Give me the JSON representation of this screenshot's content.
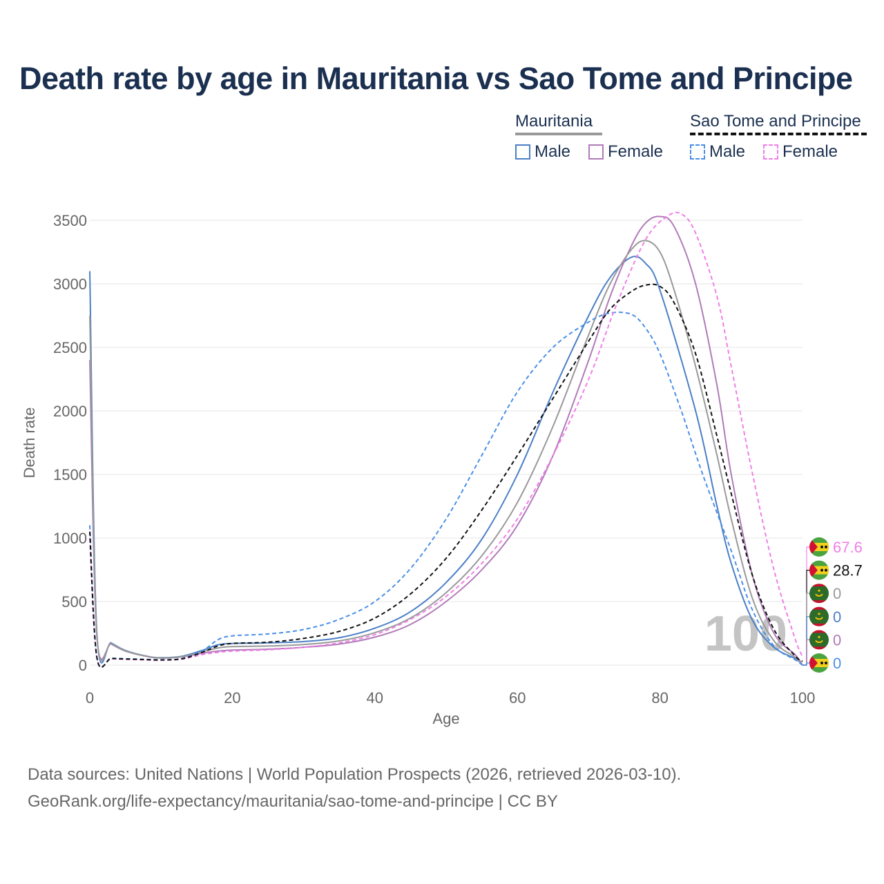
{
  "title": "Death rate by age in Mauritania vs Sao Tome and Principe",
  "legend": {
    "groups": [
      {
        "name": "Mauritania",
        "line_style": "solid",
        "line_color": "#999999",
        "items": [
          {
            "label": "Male",
            "color": "#4a7fc6",
            "style": "solid"
          },
          {
            "label": "Female",
            "color": "#b07ab8",
            "style": "solid"
          }
        ]
      },
      {
        "name": "Sao Tome and Principe",
        "line_style": "dashed",
        "line_color": "#111111",
        "items": [
          {
            "label": "Male",
            "color": "#4a8fe8",
            "style": "dashed"
          },
          {
            "label": "Female",
            "color": "#f07ee8",
            "style": "dashed"
          }
        ]
      }
    ]
  },
  "footer": {
    "line1": "Data sources: United Nations | World Population Prospects (2026, retrieved 2026-03-10).",
    "line2": "GeoRank.org/life-expectancy/mauritania/sao-tome-and-principe | CC BY"
  },
  "chart_data": {
    "type": "line",
    "title": "Death rate by age in Mauritania vs Sao Tome and Principe",
    "xlabel": "Age",
    "ylabel": "Death rate",
    "xlim": [
      0,
      100
    ],
    "ylim": [
      0,
      3500
    ],
    "xticks": [
      0,
      20,
      40,
      60,
      80,
      100
    ],
    "yticks": [
      0,
      500,
      1000,
      1500,
      2000,
      2500,
      3000,
      3500
    ],
    "grid": true,
    "watermark": "100",
    "series": [
      {
        "name": "Mauritania Male",
        "color": "#4a7fc6",
        "dash": "solid",
        "end_label": "0",
        "points": [
          [
            0,
            3100
          ],
          [
            1,
            250
          ],
          [
            3,
            175
          ],
          [
            5,
            115
          ],
          [
            8,
            70
          ],
          [
            10,
            58
          ],
          [
            13,
            70
          ],
          [
            16,
            120
          ],
          [
            18,
            160
          ],
          [
            20,
            170
          ],
          [
            25,
            175
          ],
          [
            30,
            185
          ],
          [
            35,
            215
          ],
          [
            40,
            290
          ],
          [
            45,
            420
          ],
          [
            50,
            650
          ],
          [
            55,
            990
          ],
          [
            60,
            1500
          ],
          [
            65,
            2150
          ],
          [
            70,
            2750
          ],
          [
            73,
            3050
          ],
          [
            76,
            3210
          ],
          [
            78,
            3160
          ],
          [
            80,
            2950
          ],
          [
            85,
            2000
          ],
          [
            88,
            1250
          ],
          [
            90,
            800
          ],
          [
            93,
            350
          ],
          [
            96,
            140
          ],
          [
            99,
            50
          ],
          [
            100,
            0
          ]
        ]
      },
      {
        "name": "Mauritania Female",
        "color": "#b07ab8",
        "dash": "solid",
        "end_label": "0",
        "points": [
          [
            0,
            2400
          ],
          [
            1,
            225
          ],
          [
            3,
            165
          ],
          [
            5,
            110
          ],
          [
            8,
            68
          ],
          [
            10,
            55
          ],
          [
            13,
            65
          ],
          [
            16,
            95
          ],
          [
            18,
            110
          ],
          [
            20,
            118
          ],
          [
            25,
            125
          ],
          [
            30,
            140
          ],
          [
            35,
            165
          ],
          [
            40,
            220
          ],
          [
            45,
            320
          ],
          [
            50,
            500
          ],
          [
            55,
            750
          ],
          [
            60,
            1100
          ],
          [
            65,
            1650
          ],
          [
            70,
            2400
          ],
          [
            73,
            2900
          ],
          [
            76,
            3300
          ],
          [
            78,
            3480
          ],
          [
            80,
            3530
          ],
          [
            82,
            3450
          ],
          [
            85,
            3000
          ],
          [
            88,
            2200
          ],
          [
            90,
            1500
          ],
          [
            93,
            700
          ],
          [
            96,
            250
          ],
          [
            99,
            80
          ],
          [
            100,
            0
          ]
        ]
      },
      {
        "name": "Mauritania (total)",
        "color": "#999999",
        "dash": "solid",
        "end_label": "0",
        "points": [
          [
            0,
            2750
          ],
          [
            1,
            240
          ],
          [
            3,
            170
          ],
          [
            5,
            112
          ],
          [
            8,
            69
          ],
          [
            10,
            56
          ],
          [
            13,
            67
          ],
          [
            16,
            108
          ],
          [
            18,
            135
          ],
          [
            20,
            145
          ],
          [
            25,
            150
          ],
          [
            30,
            162
          ],
          [
            35,
            190
          ],
          [
            40,
            255
          ],
          [
            45,
            370
          ],
          [
            50,
            570
          ],
          [
            55,
            860
          ],
          [
            60,
            1280
          ],
          [
            65,
            1880
          ],
          [
            70,
            2600
          ],
          [
            73,
            3000
          ],
          [
            76,
            3270
          ],
          [
            78,
            3340
          ],
          [
            80,
            3250
          ],
          [
            82,
            2950
          ],
          [
            85,
            2350
          ],
          [
            88,
            1650
          ],
          [
            90,
            1150
          ],
          [
            93,
            520
          ],
          [
            96,
            190
          ],
          [
            99,
            60
          ],
          [
            100,
            0
          ]
        ]
      },
      {
        "name": "Sao Tome and Principe Male",
        "color": "#4a8fe8",
        "dash": "dashed",
        "end_label": "0",
        "points": [
          [
            0,
            1100
          ],
          [
            1,
            60
          ],
          [
            3,
            55
          ],
          [
            5,
            50
          ],
          [
            8,
            45
          ],
          [
            10,
            42
          ],
          [
            13,
            52
          ],
          [
            16,
            120
          ],
          [
            18,
            200
          ],
          [
            20,
            230
          ],
          [
            25,
            245
          ],
          [
            30,
            280
          ],
          [
            35,
            360
          ],
          [
            40,
            500
          ],
          [
            45,
            760
          ],
          [
            50,
            1150
          ],
          [
            55,
            1650
          ],
          [
            60,
            2150
          ],
          [
            65,
            2500
          ],
          [
            70,
            2700
          ],
          [
            73,
            2770
          ],
          [
            76,
            2760
          ],
          [
            78,
            2650
          ],
          [
            80,
            2450
          ],
          [
            83,
            2000
          ],
          [
            86,
            1500
          ],
          [
            90,
            900
          ],
          [
            93,
            430
          ],
          [
            96,
            150
          ],
          [
            99,
            40
          ],
          [
            100,
            0
          ]
        ]
      },
      {
        "name": "Sao Tome and Principe Female",
        "color": "#f07ee8",
        "dash": "dashed",
        "end_label": "67.6",
        "points": [
          [
            0,
            1000
          ],
          [
            1,
            55
          ],
          [
            3,
            50
          ],
          [
            5,
            45
          ],
          [
            8,
            40
          ],
          [
            10,
            38
          ],
          [
            13,
            48
          ],
          [
            16,
            85
          ],
          [
            18,
            100
          ],
          [
            20,
            110
          ],
          [
            25,
            120
          ],
          [
            30,
            140
          ],
          [
            35,
            175
          ],
          [
            40,
            240
          ],
          [
            45,
            360
          ],
          [
            50,
            540
          ],
          [
            55,
            800
          ],
          [
            60,
            1150
          ],
          [
            65,
            1650
          ],
          [
            70,
            2250
          ],
          [
            74,
            2850
          ],
          [
            78,
            3350
          ],
          [
            81,
            3530
          ],
          [
            83,
            3550
          ],
          [
            85,
            3400
          ],
          [
            88,
            2900
          ],
          [
            90,
            2350
          ],
          [
            93,
            1500
          ],
          [
            96,
            750
          ],
          [
            99,
            200
          ],
          [
            100,
            68
          ]
        ]
      },
      {
        "name": "Sao Tome and Principe (total)",
        "color": "#111111",
        "dash": "dashed",
        "end_label": "28.7",
        "points": [
          [
            0,
            1050
          ],
          [
            1,
            58
          ],
          [
            3,
            52
          ],
          [
            5,
            48
          ],
          [
            8,
            43
          ],
          [
            10,
            40
          ],
          [
            13,
            50
          ],
          [
            16,
            105
          ],
          [
            18,
            150
          ],
          [
            20,
            170
          ],
          [
            25,
            180
          ],
          [
            30,
            210
          ],
          [
            35,
            265
          ],
          [
            40,
            370
          ],
          [
            45,
            560
          ],
          [
            50,
            840
          ],
          [
            55,
            1220
          ],
          [
            60,
            1650
          ],
          [
            65,
            2100
          ],
          [
            70,
            2550
          ],
          [
            73,
            2800
          ],
          [
            76,
            2940
          ],
          [
            78,
            2990
          ],
          [
            80,
            2980
          ],
          [
            82,
            2850
          ],
          [
            85,
            2450
          ],
          [
            88,
            1800
          ],
          [
            90,
            1350
          ],
          [
            93,
            700
          ],
          [
            96,
            280
          ],
          [
            99,
            70
          ],
          [
            100,
            29
          ]
        ]
      }
    ],
    "end_labels": [
      {
        "text": "67.6",
        "color": "#f07ee8",
        "flag": "sao-tome"
      },
      {
        "text": "28.7",
        "color": "#111111",
        "flag": "sao-tome"
      },
      {
        "text": "0",
        "color": "#999999",
        "flag": "mauritania"
      },
      {
        "text": "0",
        "color": "#4a7fc6",
        "flag": "mauritania"
      },
      {
        "text": "0",
        "color": "#b07ab8",
        "flag": "mauritania"
      },
      {
        "text": "0",
        "color": "#4a8fe8",
        "flag": "sao-tome"
      }
    ]
  }
}
